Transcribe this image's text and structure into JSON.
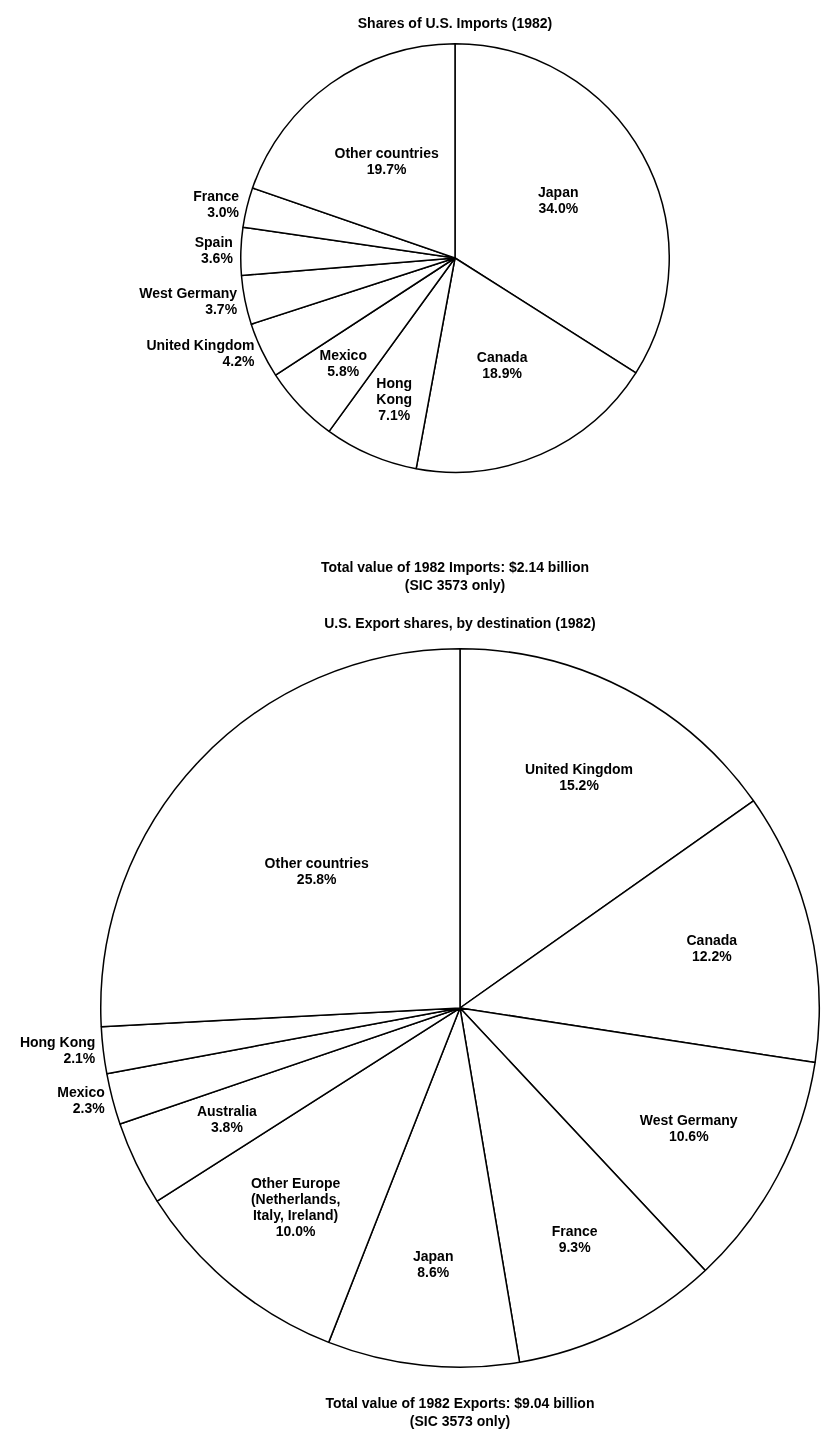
{
  "chart_data": [
    {
      "type": "pie",
      "title": "Shares of U.S. Imports (1982)",
      "categories": [
        "Japan",
        "Canada",
        "Hong Kong",
        "Mexico",
        "United Kingdom",
        "West Germany",
        "Spain",
        "France",
        "Other countries"
      ],
      "values": [
        34.0,
        18.9,
        7.1,
        5.8,
        4.2,
        3.7,
        3.6,
        3.0,
        19.7
      ],
      "value_labels": [
        "34.0%",
        "18.9%",
        "7.1%",
        "5.8%",
        "4.2%",
        "3.7%",
        "3.6%",
        "3.0%",
        "19.7%"
      ],
      "colors": [
        "#ffffff",
        "#ffffff",
        "#ffffff",
        "#ffffff",
        "#ffffff",
        "#ffffff",
        "#ffffff",
        "#ffffff",
        "#ffffff"
      ],
      "annotations": [
        "Total value of 1982 Imports: $2.14 billion",
        "(SIC 3573 only)"
      ],
      "legend": false
    },
    {
      "type": "pie",
      "title": "U.S. Export shares, by destination (1982)",
      "categories": [
        "United Kingdom",
        "Canada",
        "West Germany",
        "France",
        "Japan",
        "Other Europe (Netherlands, Italy, Ireland)",
        "Australia",
        "Mexico",
        "Hong Kong",
        "Other countries"
      ],
      "values": [
        15.2,
        12.2,
        10.6,
        9.3,
        8.6,
        10.0,
        3.8,
        2.3,
        2.1,
        25.8
      ],
      "value_labels": [
        "15.2%",
        "12.2%",
        "10.6%",
        "9.3%",
        "8.6%",
        "10.0%",
        "3.8%",
        "2.3%",
        "2.1%",
        "25.8%"
      ],
      "colors": [
        "#ffffff",
        "#ffffff",
        "#ffffff",
        "#ffffff",
        "#ffffff",
        "#ffffff",
        "#ffffff",
        "#ffffff",
        "#ffffff",
        "#ffffff"
      ],
      "annotations": [
        "Total value of 1982 Exports: $9.04 billion",
        "(SIC 3573 only)"
      ],
      "legend": false
    }
  ]
}
